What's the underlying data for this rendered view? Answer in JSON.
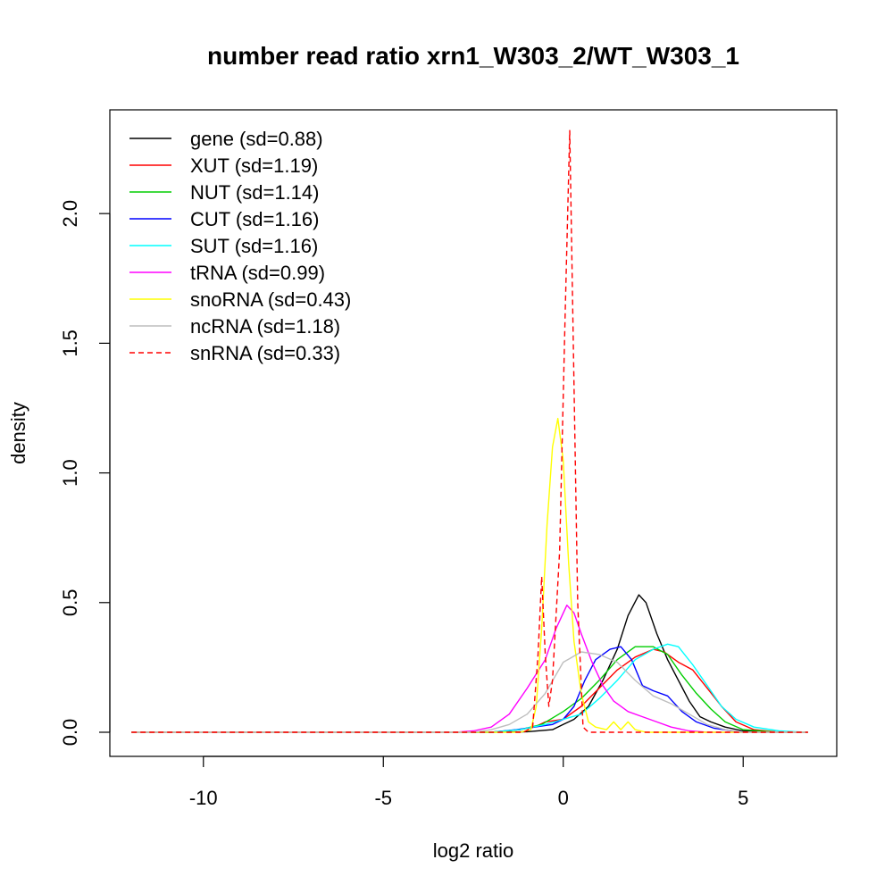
{
  "chart_data": {
    "type": "line",
    "title": "number read ratio xrn1_W303_2/WT_W303_1",
    "xlabel": "log2 ratio",
    "ylabel": "density",
    "xlim": [
      -12.6,
      7.6
    ],
    "ylim": [
      -0.093,
      2.4
    ],
    "x_ticks": [
      -10,
      -5,
      0,
      5
    ],
    "x_tick_labels": [
      "-10",
      "-5",
      "0",
      "5"
    ],
    "y_ticks": [
      0.0,
      0.5,
      1.0,
      1.5,
      2.0
    ],
    "y_tick_labels": [
      "0.0",
      "0.5",
      "1.0",
      "1.5",
      "2.0"
    ],
    "grid": false,
    "legend_position": "top-left",
    "series": [
      {
        "name": "gene (sd=0.88)",
        "color": "#000000",
        "dash": false,
        "points": [
          [
            -12,
            0
          ],
          [
            -2,
            0
          ],
          [
            -1,
            0.002
          ],
          [
            -0.3,
            0.01
          ],
          [
            0,
            0.03
          ],
          [
            0.3,
            0.05
          ],
          [
            0.7,
            0.1
          ],
          [
            1.1,
            0.2
          ],
          [
            1.5,
            0.32
          ],
          [
            1.8,
            0.45
          ],
          [
            2.1,
            0.53
          ],
          [
            2.3,
            0.5
          ],
          [
            2.6,
            0.38
          ],
          [
            2.9,
            0.28
          ],
          [
            3.2,
            0.2
          ],
          [
            3.5,
            0.12
          ],
          [
            3.8,
            0.06
          ],
          [
            4.1,
            0.04
          ],
          [
            4.5,
            0.02
          ],
          [
            5,
            0.005
          ],
          [
            6,
            0
          ],
          [
            6.8,
            0
          ]
        ]
      },
      {
        "name": "XUT (sd=1.19)",
        "color": "#ff0000",
        "dash": false,
        "points": [
          [
            -12,
            0
          ],
          [
            -2,
            0
          ],
          [
            -1.2,
            0.01
          ],
          [
            -0.8,
            0.02
          ],
          [
            -0.5,
            0.04
          ],
          [
            0,
            0.05
          ],
          [
            0.5,
            0.1
          ],
          [
            1,
            0.17
          ],
          [
            1.5,
            0.24
          ],
          [
            2,
            0.29
          ],
          [
            2.5,
            0.32
          ],
          [
            2.8,
            0.31
          ],
          [
            3.2,
            0.27
          ],
          [
            3.6,
            0.24
          ],
          [
            4,
            0.17
          ],
          [
            4.4,
            0.1
          ],
          [
            4.8,
            0.04
          ],
          [
            5.3,
            0.01
          ],
          [
            6,
            0
          ],
          [
            6.8,
            0
          ]
        ]
      },
      {
        "name": "NUT (sd=1.14)",
        "color": "#00cd00",
        "dash": false,
        "points": [
          [
            -12,
            0
          ],
          [
            -2,
            0
          ],
          [
            -1.2,
            0.01
          ],
          [
            -0.6,
            0.03
          ],
          [
            0,
            0.08
          ],
          [
            0.5,
            0.13
          ],
          [
            1,
            0.2
          ],
          [
            1.5,
            0.28
          ],
          [
            2,
            0.33
          ],
          [
            2.5,
            0.33
          ],
          [
            2.9,
            0.3
          ],
          [
            3.3,
            0.22
          ],
          [
            3.7,
            0.15
          ],
          [
            4.1,
            0.09
          ],
          [
            4.5,
            0.04
          ],
          [
            5,
            0.01
          ],
          [
            6,
            0
          ],
          [
            6.8,
            0
          ]
        ]
      },
      {
        "name": "CUT (sd=1.16)",
        "color": "#0000ff",
        "dash": false,
        "points": [
          [
            -12,
            0
          ],
          [
            -2,
            0
          ],
          [
            -1.3,
            0.01
          ],
          [
            -0.8,
            0.02
          ],
          [
            -0.3,
            0.03
          ],
          [
            0,
            0.05
          ],
          [
            0.3,
            0.1
          ],
          [
            0.6,
            0.2
          ],
          [
            0.9,
            0.28
          ],
          [
            1.3,
            0.32
          ],
          [
            1.6,
            0.33
          ],
          [
            1.9,
            0.28
          ],
          [
            2.2,
            0.18
          ],
          [
            2.5,
            0.16
          ],
          [
            2.9,
            0.14
          ],
          [
            3.3,
            0.08
          ],
          [
            3.7,
            0.04
          ],
          [
            4.2,
            0.015
          ],
          [
            5,
            0
          ],
          [
            6.8,
            0
          ]
        ]
      },
      {
        "name": "SUT (sd=1.16)",
        "color": "#00ffff",
        "dash": false,
        "points": [
          [
            -12,
            0
          ],
          [
            -2,
            0
          ],
          [
            -1.2,
            0.01
          ],
          [
            -0.5,
            0.03
          ],
          [
            0,
            0.05
          ],
          [
            0.5,
            0.07
          ],
          [
            1,
            0.13
          ],
          [
            1.5,
            0.2
          ],
          [
            2,
            0.28
          ],
          [
            2.5,
            0.32
          ],
          [
            2.9,
            0.34
          ],
          [
            3.2,
            0.33
          ],
          [
            3.6,
            0.26
          ],
          [
            4,
            0.18
          ],
          [
            4.4,
            0.1
          ],
          [
            4.8,
            0.05
          ],
          [
            5.3,
            0.02
          ],
          [
            6,
            0.005
          ],
          [
            6.8,
            0
          ]
        ]
      },
      {
        "name": "tRNA (sd=0.99)",
        "color": "#ff00ff",
        "dash": false,
        "points": [
          [
            -12,
            0
          ],
          [
            -3,
            0
          ],
          [
            -2.5,
            0.005
          ],
          [
            -2,
            0.02
          ],
          [
            -1.5,
            0.07
          ],
          [
            -1,
            0.17
          ],
          [
            -0.5,
            0.28
          ],
          [
            -0.2,
            0.4
          ],
          [
            0.1,
            0.49
          ],
          [
            0.3,
            0.46
          ],
          [
            0.5,
            0.38
          ],
          [
            0.8,
            0.27
          ],
          [
            1.1,
            0.18
          ],
          [
            1.4,
            0.12
          ],
          [
            1.8,
            0.08
          ],
          [
            2.2,
            0.06
          ],
          [
            2.6,
            0.04
          ],
          [
            3,
            0.02
          ],
          [
            3.5,
            0.005
          ],
          [
            4,
            0
          ],
          [
            6.8,
            0
          ]
        ]
      },
      {
        "name": "snoRNA (sd=0.43)",
        "color": "#ffff00",
        "dash": false,
        "points": [
          [
            -12,
            0
          ],
          [
            -1.2,
            0
          ],
          [
            -0.9,
            0.01
          ],
          [
            -0.75,
            0.1
          ],
          [
            -0.6,
            0.4
          ],
          [
            -0.45,
            0.8
          ],
          [
            -0.3,
            1.1
          ],
          [
            -0.15,
            1.21
          ],
          [
            0,
            1.05
          ],
          [
            0.15,
            0.65
          ],
          [
            0.3,
            0.35
          ],
          [
            0.5,
            0.15
          ],
          [
            0.7,
            0.04
          ],
          [
            0.9,
            0.02
          ],
          [
            1.2,
            0.01
          ],
          [
            1.4,
            0.04
          ],
          [
            1.6,
            0.01
          ],
          [
            1.8,
            0.04
          ],
          [
            2,
            0.01
          ],
          [
            2.3,
            0
          ],
          [
            6.8,
            0
          ]
        ]
      },
      {
        "name": "ncRNA (sd=1.18)",
        "color": "#bebebe",
        "dash": false,
        "points": [
          [
            -12,
            0
          ],
          [
            -2.5,
            0
          ],
          [
            -2,
            0.01
          ],
          [
            -1.5,
            0.03
          ],
          [
            -1,
            0.07
          ],
          [
            -0.5,
            0.15
          ],
          [
            0,
            0.27
          ],
          [
            0.5,
            0.31
          ],
          [
            1,
            0.3
          ],
          [
            1.5,
            0.27
          ],
          [
            2,
            0.2
          ],
          [
            2.5,
            0.14
          ],
          [
            3,
            0.11
          ],
          [
            3.5,
            0.07
          ],
          [
            4,
            0.03
          ],
          [
            4.5,
            0.01
          ],
          [
            5,
            0
          ],
          [
            6.8,
            0
          ]
        ]
      },
      {
        "name": "snRNA (sd=0.33)",
        "color": "#ff0000",
        "dash": true,
        "points": [
          [
            -12,
            0
          ],
          [
            -1.1,
            0
          ],
          [
            -0.85,
            0.02
          ],
          [
            -0.7,
            0.3
          ],
          [
            -0.6,
            0.6
          ],
          [
            -0.5,
            0.3
          ],
          [
            -0.4,
            0.1
          ],
          [
            -0.3,
            0.2
          ],
          [
            -0.1,
            0.7
          ],
          [
            0.05,
            1.6
          ],
          [
            0.18,
            2.32
          ],
          [
            0.28,
            1.5
          ],
          [
            0.4,
            0.5
          ],
          [
            0.55,
            0.02
          ],
          [
            0.7,
            0
          ],
          [
            6.8,
            0
          ]
        ]
      }
    ]
  }
}
